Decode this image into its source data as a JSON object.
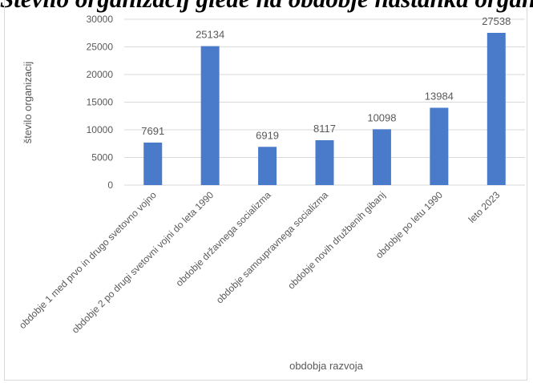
{
  "page": {
    "clipped_title": "Število organizacij glede na obdobje nastanka organizacij"
  },
  "chart_data": {
    "type": "bar",
    "categories": [
      "obdobje 1 med prvo in drugo svetovno vojno",
      "obdobje 2 po drugi svetovni vojni do leta 1990",
      "obdobje državnega socializma",
      "obdobje samoupravnega socializma",
      "obdobje novih družbenih gibanj",
      "obdobje po letu 1990",
      "leto 2023"
    ],
    "values": [
      7691,
      25134,
      6919,
      8117,
      10098,
      13984,
      27538
    ],
    "data_labels": [
      "7691",
      "25134",
      "6919",
      "8117",
      "10098",
      "13984",
      "27538"
    ],
    "xlabel": "obdobja razvoja",
    "ylabel": "število organizacij",
    "ylim": [
      0,
      30000
    ],
    "yticks": [
      "0",
      "5000",
      "10000",
      "15000",
      "20000",
      "25000",
      "30000"
    ],
    "grid": true,
    "legend": "none",
    "colors": {
      "bar": "#4a7bcb",
      "grid": "#d9d9d9",
      "text": "#595959"
    }
  }
}
